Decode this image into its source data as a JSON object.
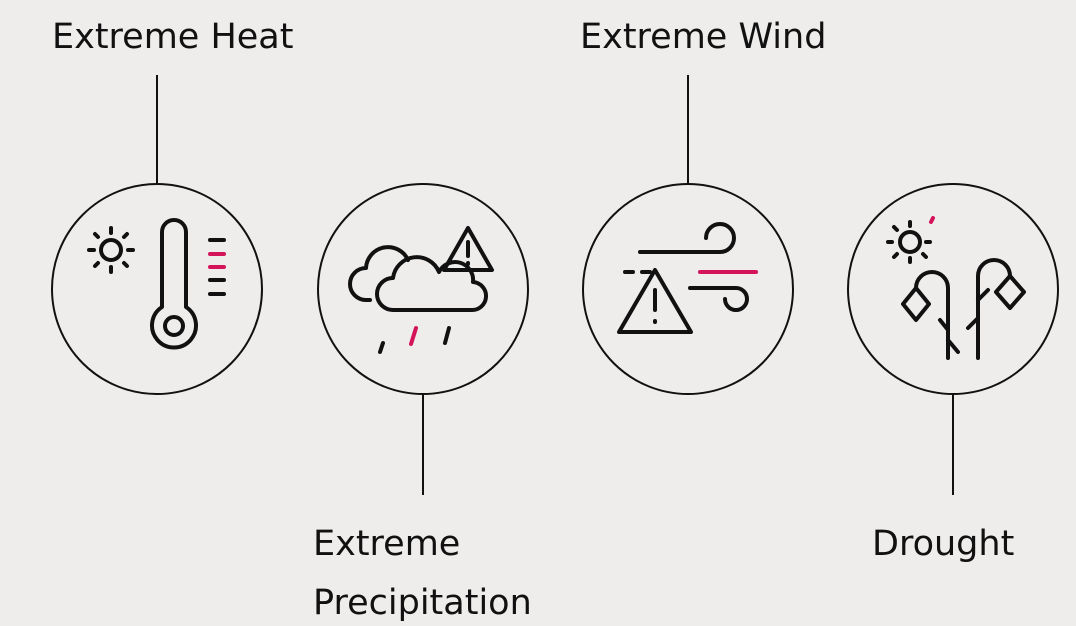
{
  "items": [
    {
      "label": "Extreme Heat"
    },
    {
      "label_lines": [
        "Extreme",
        "Precipitation"
      ]
    },
    {
      "label": "Extreme Wind"
    },
    {
      "label": "Drought"
    }
  ]
}
